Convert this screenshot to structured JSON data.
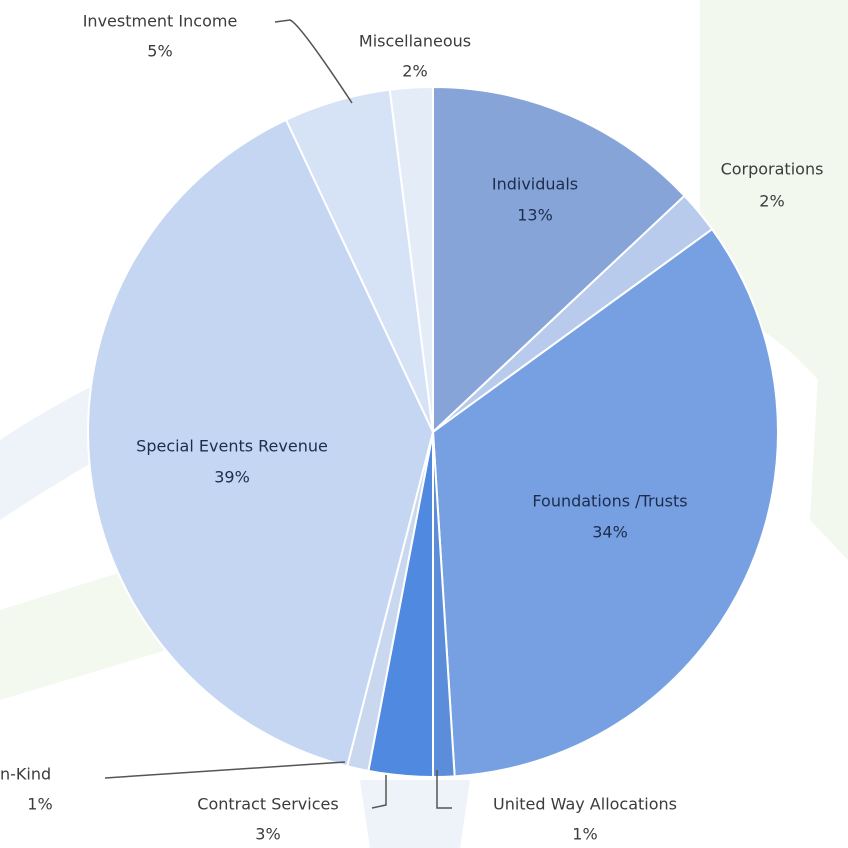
{
  "chart_data": {
    "type": "pie",
    "categories": [
      "Individuals",
      "Corporations",
      "Foundations /Trusts",
      "United Way Allocations",
      "Contract Services",
      "n-Kind",
      "Special Events Revenue",
      "Investment Income",
      "Miscellaneous"
    ],
    "values": [
      13,
      2,
      34,
      1,
      3,
      1,
      39,
      5,
      2
    ],
    "value_labels": [
      "13%",
      "2%",
      "34%",
      "1%",
      "3%",
      "1%",
      "39%",
      "5%",
      "2%"
    ],
    "colors": [
      "#86a4d8",
      "#b9cbec",
      "#76a0e2",
      "#5c8ddb",
      "#5089e0",
      "#c9d7ef",
      "#c5d6f3",
      "#d6e2f5",
      "#e4ecf8"
    ]
  }
}
